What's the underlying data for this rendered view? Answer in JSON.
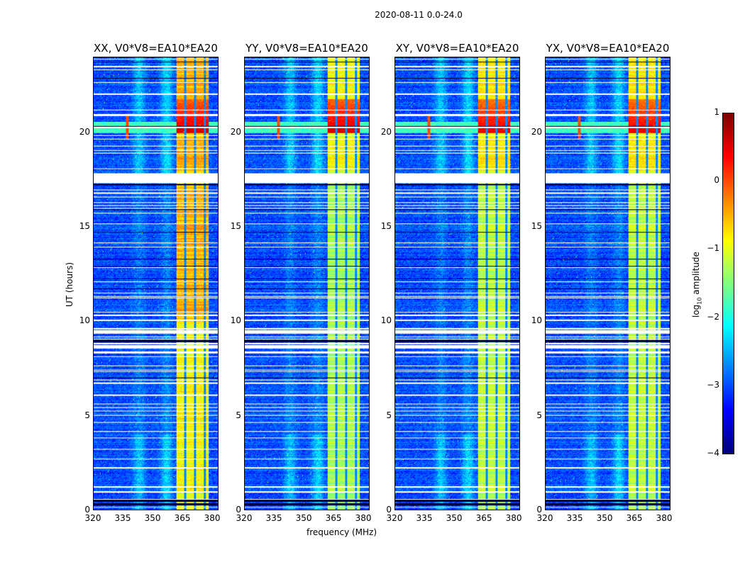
{
  "chart_data": {
    "type": "heatmap",
    "title": "2020-08-11 0.0-24.0",
    "xlabel": "frequency (MHz)",
    "ylabel": "UT (hours)",
    "xlim": [
      320,
      383.2
    ],
    "ylim": [
      0,
      24
    ],
    "xticks": [
      320,
      335,
      350,
      365,
      380
    ],
    "yticks": [
      0,
      5,
      10,
      15,
      20
    ],
    "panels": [
      {
        "title": "XX, V0*V8=EA10*EA20",
        "band_level": -0.9,
        "bright_level": 0.6
      },
      {
        "title": "YY, V0*V8=EA10*EA20",
        "band_level": -1.3,
        "bright_level": 0.6
      },
      {
        "title": "XY, V0*V8=EA10*EA20",
        "band_level": -1.2,
        "bright_level": 0.5
      },
      {
        "title": "YX, V0*V8=EA10*EA20",
        "band_level": -1.2,
        "bright_level": 0.5
      }
    ],
    "background_level": -3.0,
    "rfi_band_MHz": [
      362,
      378.5
    ],
    "band_dark_channels_MHz": [
      366.5,
      371.5,
      376.3
    ],
    "bright_event_hours": [
      20.0,
      20.6
    ],
    "flagged_white_hours": [
      [
        0.9,
        1.0
      ],
      [
        1.2,
        1.25
      ],
      [
        8.3,
        8.4
      ],
      [
        8.55,
        8.75
      ],
      [
        9.35,
        9.55
      ],
      [
        17.35,
        17.85
      ],
      [
        23.5,
        23.55
      ]
    ],
    "dark_row_hours": [
      [
        0.25,
        0.35
      ],
      [
        0.45,
        0.6
      ],
      [
        8.9,
        9.0
      ],
      [
        17.25,
        17.3
      ],
      [
        23.75,
        23.8
      ]
    ],
    "colorbar": {
      "label": "log10 amplitude",
      "label_main": "log",
      "label_sub": "10",
      "label_rest": " amplitude",
      "range": [
        -4,
        1
      ],
      "ticks": [
        "1",
        "0",
        "−1",
        "−2",
        "−3",
        "−4"
      ],
      "colormap": "jet"
    }
  }
}
